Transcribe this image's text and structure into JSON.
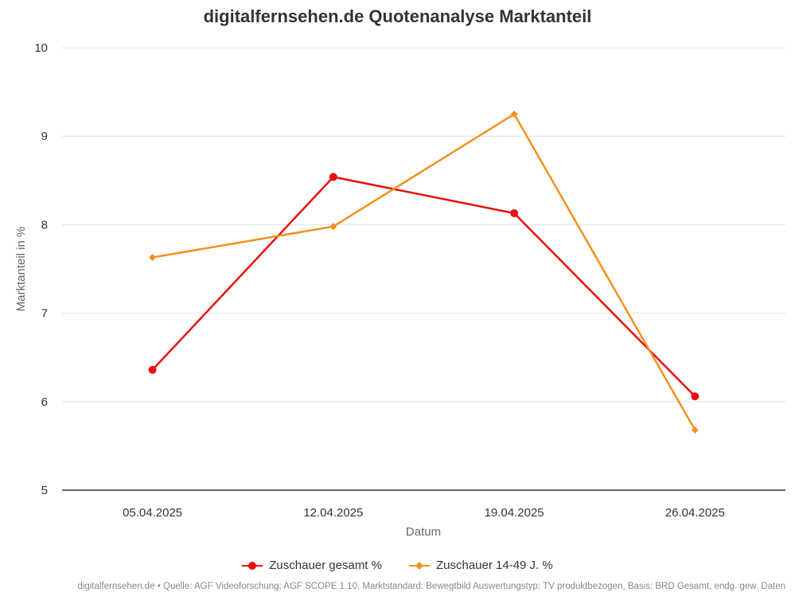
{
  "chart_data": {
    "type": "line",
    "title": "digitalfernsehen.de Quotenanalyse Marktanteil",
    "xlabel": "Datum",
    "ylabel": "Marktanteil in %",
    "categories": [
      "05.04.2025",
      "12.04.2025",
      "19.04.2025",
      "26.04.2025"
    ],
    "ylim": [
      5,
      10
    ],
    "yticks": [
      5,
      6,
      7,
      8,
      9,
      10
    ],
    "grid": true,
    "legend_position": "bottom",
    "series": [
      {
        "name": "Zuschauer gesamt %",
        "color": "#e8100f",
        "marker": "circle",
        "values": [
          6.36,
          8.54,
          8.13,
          6.06
        ]
      },
      {
        "name": "Zuschauer 14-49 J. %",
        "color": "#f5901e",
        "marker": "diamond",
        "values": [
          7.63,
          7.98,
          9.25,
          5.68
        ]
      }
    ]
  },
  "footer": {
    "text": "digitalfernsehen.de • Quelle: AGF Videoforschung; AGF SCOPE 1.10, Marktstandard: Bewegtbild Auswertungstyp: TV produktbezogen, Basis: BRD Gesamt, endg. gew. Daten"
  }
}
